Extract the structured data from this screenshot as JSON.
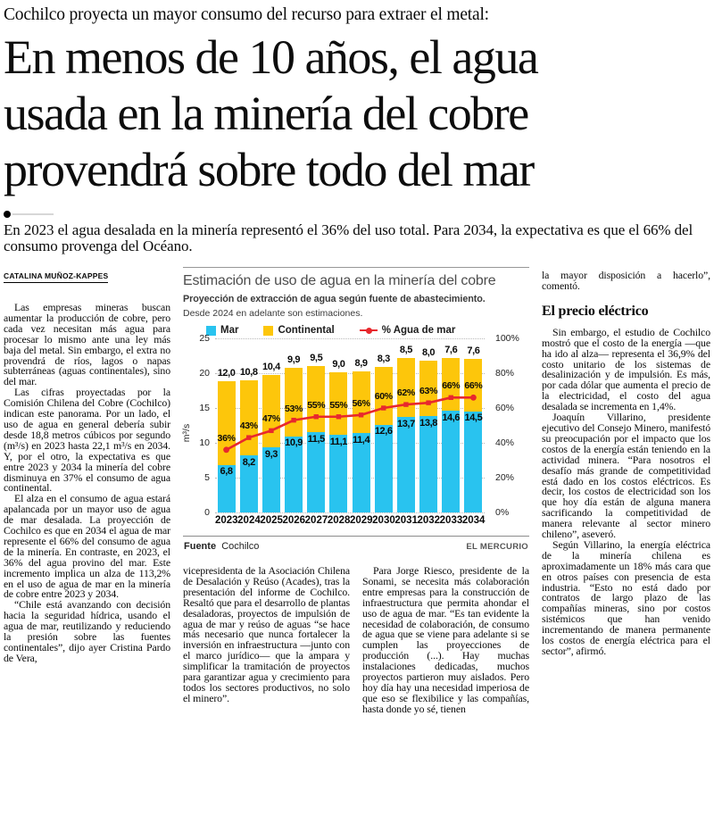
{
  "kicker": "Cochilco proyecta un mayor consumo del recurso para extraer el metal:",
  "headline": {
    "line1": "En menos de 10 años, el agua",
    "line2": "usada en la minería del cobre",
    "line3": "provendrá sobre todo del mar"
  },
  "deck": "En 2023 el agua desalada en la minería representó el 36% del uso total. Para 2034, la expectativa es que el 66% del consumo provenga del Océano.",
  "byline": "CATALINA MUÑOZ-KAPPES",
  "article": {
    "col1": {
      "p1": "Las empresas mineras buscan aumentar la producción de cobre, pero cada vez necesitan más agua para procesar lo mismo ante una ley más baja del metal. Sin embargo, el extra no provendrá de ríos, lagos o napas subterráneas (aguas continentales), sino del mar.",
      "p2": "Las cifras proyectadas por la Comisión Chilena del Cobre (Cochilco) indican este panorama. Por un lado, el uso de agua en general debería subir desde 18,8 metros cúbicos por segundo (m³/s) en 2023 hasta 22,1 m³/s en 2034. Y, por el otro, la expectativa es que entre 2023 y 2034 la minería del cobre disminuya en 37% el consumo de agua continental.",
      "p3": "El alza en el consumo de agua estará apalancada por un mayor uso de agua de mar desalada. La proyección de Cochilco es que en 2034 el agua de mar represente el 66% del consumo de agua de la minería. En contraste, en 2023, el 36% del agua provino del mar. Este incremento implica un alza de 113,2% en el uso de agua de mar en la minería de cobre entre 2023 y 2034.",
      "p4": "“Chile está avanzando con decisión hacia la seguridad hídrica, usando el agua de mar, reutilizando y reduciendo la presión sobre las fuentes continentales”, dijo ayer Cristina Pardo de Vera,"
    },
    "col2": {
      "p1": "vicepresidenta de la Asociación Chilena de Desalación y Reúso (Acades), tras la presentación del informe de Cochilco. Resaltó que para el desarrollo de plantas desaladoras, proyectos de impulsión de agua de mar y reúso de aguas “se hace más necesario que nunca fortalecer la inversión en infraestructura —junto con el marco jurídico— que la ampara y simplificar la tramitación de proyectos para garantizar agua y crecimiento para todos los sectores productivos, no solo el minero”."
    },
    "col3": {
      "p1": "Para Jorge Riesco, presidente de la Sonami, se necesita más colaboración entre empresas para la construcción de infraestructura que permita ahondar el uso de agua de mar. “Es tan evidente la necesidad de colaboración, de consumo de agua que se viene para adelante si se cumplen las proyecciones de producción (...). Hay muchas instalaciones dedicadas, muchos proyectos partieron muy aislados. Pero hoy día hay una necesidad imperiosa de que eso se flexibilice y las compañías, hasta donde yo sé, tienen"
    },
    "col4": {
      "p1": "la mayor disposición a hacerlo”, comentó.",
      "subhead": "El precio eléctrico",
      "p2": "Sin embargo, el estudio de Cochilco mostró que el costo de la energía —que ha ido al alza— representa el 36,9% del costo unitario de los sistemas de desalinización y de impulsión. Es más, por cada dólar que aumenta el precio de la electricidad, el costo del agua desalada se incrementa en 1,4%.",
      "p3": "Joaquín Villarino, presidente ejecutivo del Consejo Minero, manifestó su preocupación por el impacto que los costos de la energía están teniendo en la actividad minera. “Para nosotros el desafío más grande de competitividad está dado en los costos eléctricos. Es decir, los costos de electricidad son los que hoy día están de alguna manera sacrificando la competitividad de manera relevante al sector minero chileno”, aseveró.",
      "p4": "Según Villarino, la energía eléctrica de la minería chilena es aproximadamente un 18% más cara que en otros países con presencia de esta industria. “Esto no está dado por contratos de largo plazo de las compañías mineras, sino por costos sistémicos que han venido incrementando de manera permanente los costos de energía eléctrica para el sector”, afirmó."
    }
  },
  "chart_data": {
    "type": "bar",
    "stacked": true,
    "title": "Estimación de uso de agua en la minería del cobre",
    "subtitle": "Proyección de extracción de agua según fuente de abastecimiento.",
    "note": "Desde 2024 en adelante son estimaciones.",
    "source_label": "Fuente",
    "source": "Cochilco",
    "credit": "EL MERCURIO",
    "categories": [
      "2023",
      "2024",
      "2025",
      "2026",
      "2027",
      "2028",
      "2029",
      "2030",
      "2031",
      "2032",
      "2033",
      "2034"
    ],
    "series": [
      {
        "name": "Mar",
        "type": "bar",
        "color": "#29c3ef",
        "values": [
          6.8,
          8.2,
          9.3,
          10.9,
          11.5,
          11.1,
          11.4,
          12.6,
          13.7,
          13.8,
          14.6,
          14.5
        ]
      },
      {
        "name": "Continental",
        "type": "bar",
        "color": "#fdc60b",
        "values": [
          12.0,
          10.8,
          10.4,
          9.9,
          9.5,
          9.0,
          8.9,
          8.3,
          8.5,
          8.0,
          7.6,
          7.6
        ]
      },
      {
        "name": "% Agua de mar",
        "type": "line",
        "axis": "right",
        "color": "#e8282d",
        "values": [
          36,
          43,
          47,
          53,
          55,
          55,
          56,
          60,
          62,
          63,
          66,
          66
        ]
      }
    ],
    "ylabel": "m³/s",
    "ylim": [
      0,
      25
    ],
    "yticks": [
      0,
      5,
      10,
      15,
      20,
      25
    ],
    "y2lim": [
      0,
      100
    ],
    "y2ticks": [
      0,
      20,
      40,
      60,
      80,
      100
    ],
    "y2suffix": "%",
    "grid": "horizontal-dotted",
    "legend_position": "top"
  }
}
